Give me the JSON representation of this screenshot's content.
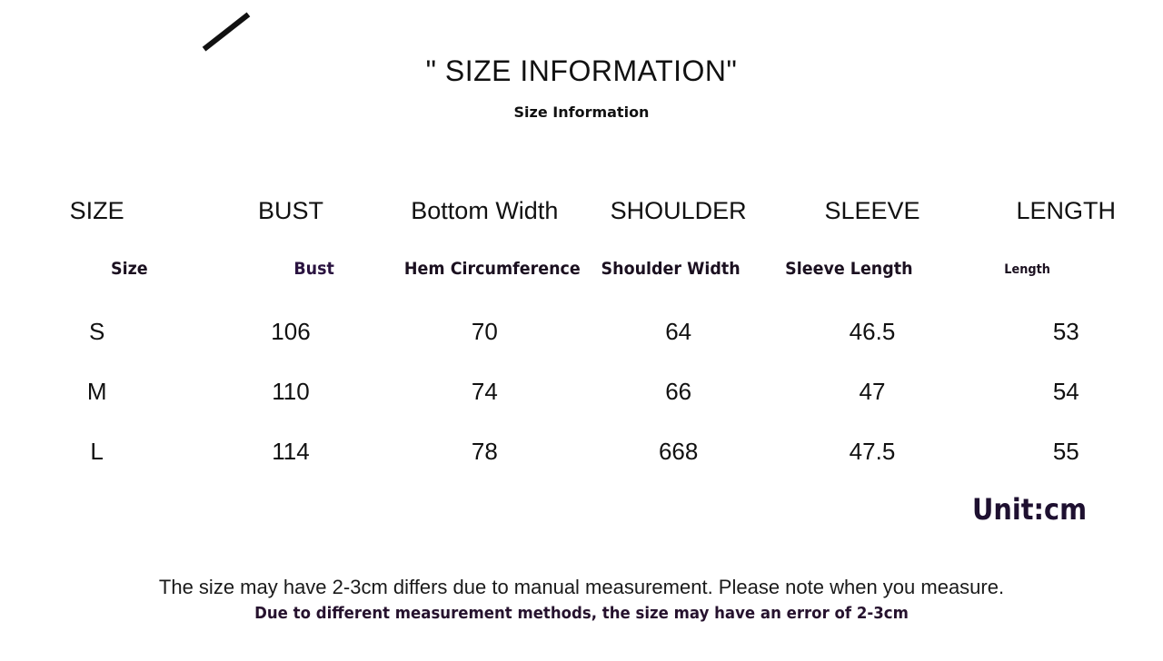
{
  "title": "\" SIZE INFORMATION\"",
  "subtitle": "Size Information",
  "headers": [
    "SIZE",
    "BUST",
    "Bottom Width",
    "SHOULDER",
    "SLEEVE",
    "LENGTH"
  ],
  "subheaders": [
    "Size",
    "Bust",
    "Hem Circumference",
    "Shoulder Width",
    "Sleeve Length",
    "Length"
  ],
  "rows": [
    [
      "S",
      "106",
      "70",
      "64",
      "46.5",
      "53"
    ],
    [
      "M",
      "110",
      "74",
      "66",
      "47",
      "54"
    ],
    [
      "L",
      "114",
      "78",
      "668",
      "47.5",
      "55"
    ]
  ],
  "unit": "Unit:cm",
  "note_line1": "The size may have 2-3cm differs due to manual measurement. Please note when you measure.",
  "note_line2": "Due to different measurement methods, the size may have an error of 2-3cm"
}
